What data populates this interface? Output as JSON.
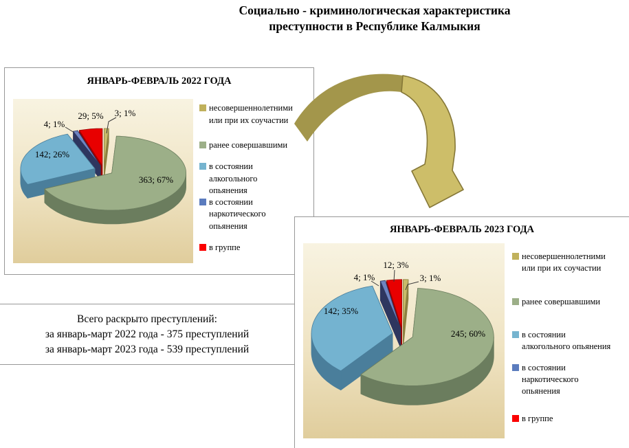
{
  "title": {
    "line1": "Социально - криминологическая характеристика",
    "line2": "преступности в Республике Калмыкия"
  },
  "summary": {
    "line1": "Всего раскрыто преступлений:",
    "line2": "за январь-март 2022  года - 375 преступлений",
    "line3": "за январь-март 2023  года - 539 преступлений"
  },
  "colors": {
    "arrow_dark": "#a3964b",
    "arrow_light": "#cdbe69",
    "arrow_outline": "#857737",
    "plot_bg_top": "#f8f3e1",
    "plot_bg_bottom": "#e0cd9c"
  },
  "charts": [
    {
      "title": "ЯНВАРЬ-ФЕВРАЛЬ  2022 ГОДА",
      "slices": [
        {
          "name": "несовершеннолетними или при их соучастии",
          "value": 3,
          "pct": 1,
          "data_label": "3; 1%",
          "top": "#c8ba69",
          "side": "#8c8040"
        },
        {
          "name": "ранее совершавшими",
          "value": 363,
          "pct": 67,
          "data_label": "363; 67%",
          "top": "#9caf88",
          "side": "#6b7d5e"
        },
        {
          "name": "в состоянии алкогольного опьянения",
          "value": 142,
          "pct": 26,
          "data_label": "142; 26%",
          "top": "#74b3d0",
          "side": "#4a7e9b"
        },
        {
          "name": "в состоянии наркотического опьянения",
          "value": 4,
          "pct": 1,
          "data_label": "4; 1%",
          "top": "#6e84c0",
          "side": "#2e365f"
        },
        {
          "name": "в группе",
          "value": 29,
          "pct": 5,
          "data_label": "29; 5%",
          "top": "#e80000",
          "side": "#9b0000"
        }
      ],
      "legend": [
        {
          "text": "несовершеннолетними\nили при их  соучастии",
          "color": "#c0b15c"
        },
        {
          "text": "ранее совершавшими",
          "color": "#9caf88"
        },
        {
          "text": "в  состоянии\nалкогольного\nопьянения",
          "color": "#76b4cf"
        },
        {
          "text": "в  состоянии\nнаркотического\nопьянения",
          "color": "#5b7cbe"
        },
        {
          "text": "в группе",
          "color": "#fb0000"
        }
      ]
    },
    {
      "title": "ЯНВАРЬ-ФЕВРАЛЬ 2023 ГОДА",
      "slices": [
        {
          "name": "несовершеннолетними или при их соучастии",
          "value": 3,
          "pct": 1,
          "data_label": "3; 1%",
          "top": "#c8ba69",
          "side": "#8c8040"
        },
        {
          "name": "ранее совершавшими",
          "value": 245,
          "pct": 60,
          "data_label": "245; 60%",
          "top": "#9caf88",
          "side": "#6b7d5e"
        },
        {
          "name": "в состоянии алкогольного опьянения",
          "value": 142,
          "pct": 35,
          "data_label": "142; 35%",
          "top": "#74b3d0",
          "side": "#4a7e9b"
        },
        {
          "name": "в состоянии наркотического опьянения",
          "value": 4,
          "pct": 1,
          "data_label": "4; 1%",
          "top": "#6e84c0",
          "side": "#2e365f"
        },
        {
          "name": "в группе",
          "value": 12,
          "pct": 3,
          "data_label": "12; 3%",
          "top": "#e80000",
          "side": "#9b0000"
        }
      ],
      "legend": [
        {
          "text": "несовершеннолетними\nили при их  соучастии",
          "color": "#c0b15c"
        },
        {
          "text": "ранее совершавшими",
          "color": "#9caf88"
        },
        {
          "text": "в  состоянии\nалкогольного  опьянения",
          "color": "#76b4cf"
        },
        {
          "text": "в  состоянии\nнаркотического\nопьянения",
          "color": "#5b7cbe"
        },
        {
          "text": "в группе",
          "color": "#fb0000"
        }
      ]
    }
  ],
  "chart_data": [
    {
      "type": "pie",
      "title": "ЯНВАРЬ-ФЕВРАЛЬ  2022 ГОДА",
      "labels": [
        "несовершеннолетними или при их соучастии",
        "ранее совершавшими",
        "в состоянии алкогольного опьянения",
        "в состоянии наркотического опьянения",
        "в группе"
      ],
      "values": [
        3,
        363,
        142,
        4,
        29
      ],
      "percents": [
        1,
        67,
        26,
        1,
        5
      ],
      "style": "3d-exploded-pie",
      "legend_position": "right"
    },
    {
      "type": "pie",
      "title": "ЯНВАРЬ-ФЕВРАЛЬ 2023 ГОДА",
      "labels": [
        "несовершеннолетними или при их соучастии",
        "ранее совершавшими",
        "в состоянии алкогольного опьянения",
        "в состоянии наркотического опьянения",
        "в группе"
      ],
      "values": [
        3,
        245,
        142,
        4,
        12
      ],
      "percents": [
        1,
        60,
        35,
        1,
        3
      ],
      "style": "3d-exploded-pie",
      "legend_position": "right"
    }
  ]
}
